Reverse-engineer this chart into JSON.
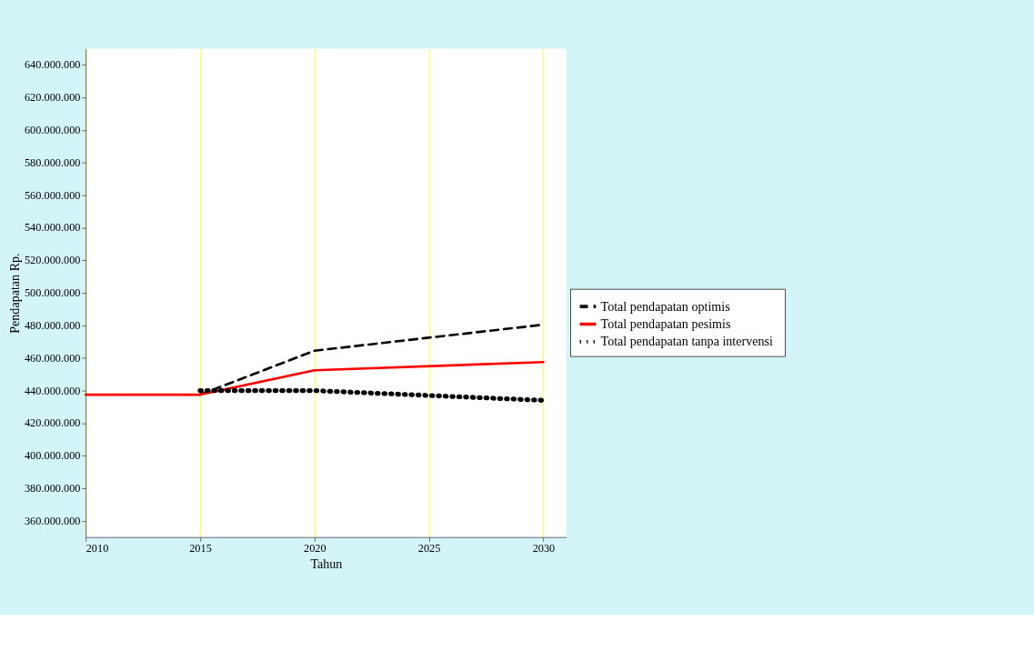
{
  "chart_data": {
    "type": "line",
    "xlabel": "Tahun",
    "ylabel": "Pendapatan Rp.",
    "xlim": [
      2010,
      2031
    ],
    "xticks": [
      2010,
      2015,
      2020,
      2025,
      2030
    ],
    "ylim": [
      350000000,
      650000000
    ],
    "yticks": [
      {
        "value": 360000000,
        "label": "360.000.000"
      },
      {
        "value": 380000000,
        "label": "380.000.000"
      },
      {
        "value": 400000000,
        "label": "400.000.000"
      },
      {
        "value": 420000000,
        "label": "420.000.000"
      },
      {
        "value": 440000000,
        "label": "440.000.000"
      },
      {
        "value": 460000000,
        "label": "460.000.000"
      },
      {
        "value": 480000000,
        "label": "480.000.000"
      },
      {
        "value": 500000000,
        "label": "500.000.000"
      },
      {
        "value": 520000000,
        "label": "520.000.000"
      },
      {
        "value": 540000000,
        "label": "540.000.000"
      },
      {
        "value": 560000000,
        "label": "560.000.000"
      },
      {
        "value": 580000000,
        "label": "580.000.000"
      },
      {
        "value": 600000000,
        "label": "600.000.000"
      },
      {
        "value": 620000000,
        "label": "620.000.000"
      },
      {
        "value": 640000000,
        "label": "640.000.000"
      }
    ],
    "grid": "x",
    "legend": "right",
    "marker": "none",
    "series": [
      {
        "name": "Total pendapatan optimis",
        "color": "#000000",
        "line_style": "dashed",
        "x": [
          2015,
          2020,
          2030
        ],
        "values": [
          437500000,
          464500000,
          480500000
        ]
      },
      {
        "name": "Total pendapatan pesimis",
        "color": "#ff0000",
        "line_style": "solid",
        "x": [
          2010,
          2015,
          2020,
          2030
        ],
        "values": [
          437500000,
          437500000,
          452500000,
          457500000
        ]
      },
      {
        "name": "Total pendapatan  tanpa intervensi",
        "color": "#000000",
        "line_style": "dotted",
        "x": [
          2015,
          2020,
          2030
        ],
        "values": [
          440000000,
          440000000,
          434000000
        ]
      }
    ]
  }
}
